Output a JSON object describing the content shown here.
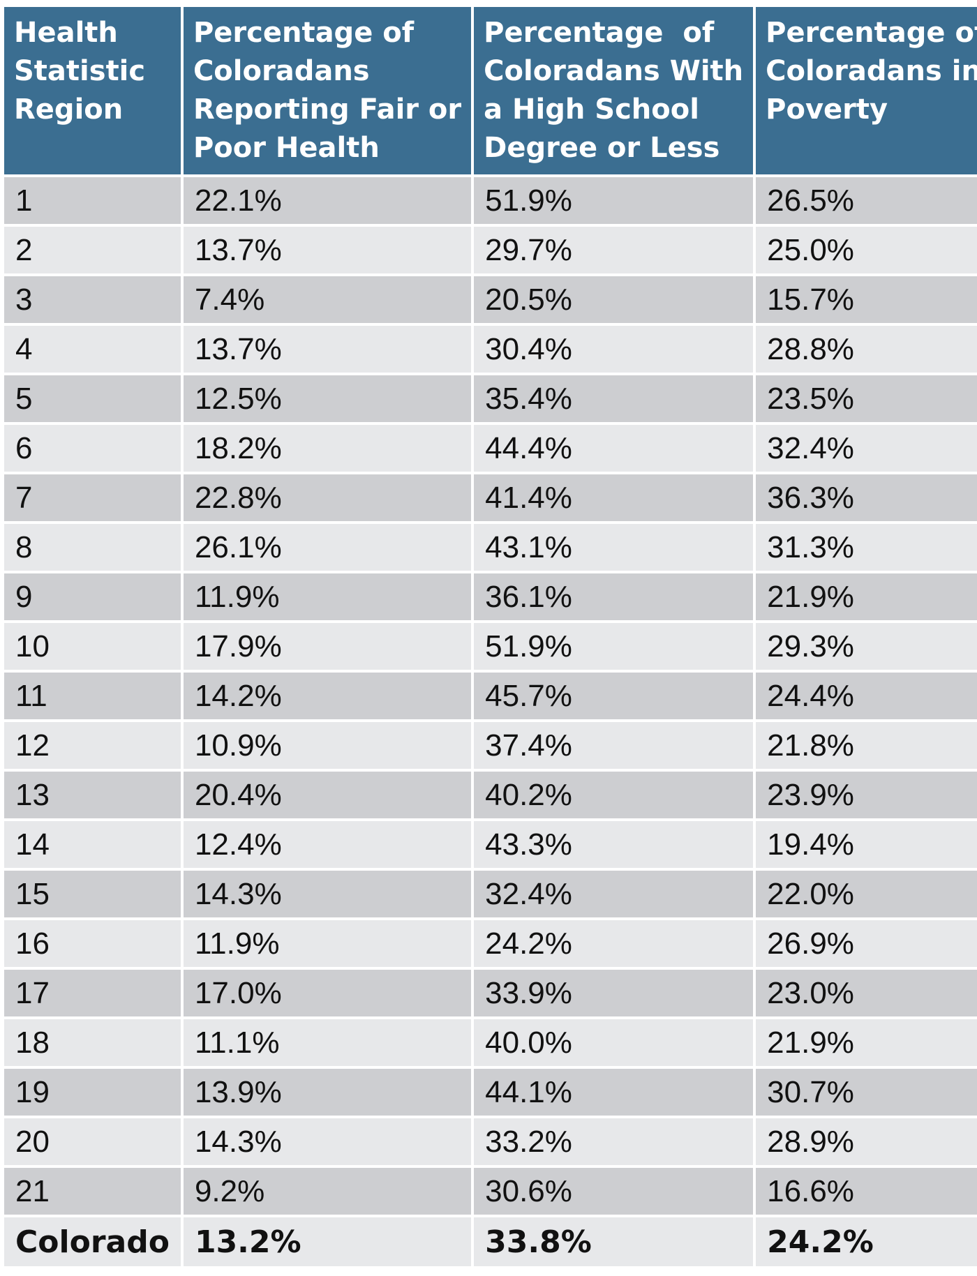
{
  "table": {
    "headers": [
      "Health Statistic Region",
      "Percentage of Coloradans Reporting Fair or Poor Health",
      "Percentage  of Coloradans With a High School Degree or Less",
      "Percentage of Coloradans in Poverty"
    ],
    "header_lines": [
      [
        "Health",
        "Statistic",
        "Region"
      ],
      [
        "Percentage of",
        "Coloradans",
        "Reporting Fair or",
        "Poor Health"
      ],
      [
        "Percentage  of",
        "Coloradans With",
        "a High School",
        "Degree or Less"
      ],
      [
        "Percentage of",
        "Coloradans in",
        "Poverty"
      ]
    ],
    "rows": [
      [
        "1",
        "22.1%",
        "51.9%",
        "26.5%"
      ],
      [
        "2",
        "13.7%",
        "29.7%",
        "25.0%"
      ],
      [
        "3",
        "7.4%",
        "20.5%",
        "15.7%"
      ],
      [
        "4",
        "13.7%",
        "30.4%",
        "28.8%"
      ],
      [
        "5",
        "12.5%",
        "35.4%",
        "23.5%"
      ],
      [
        "6",
        "18.2%",
        "44.4%",
        "32.4%"
      ],
      [
        "7",
        "22.8%",
        "41.4%",
        "36.3%"
      ],
      [
        "8",
        "26.1%",
        "43.1%",
        "31.3%"
      ],
      [
        "9",
        "11.9%",
        "36.1%",
        "21.9%"
      ],
      [
        "10",
        "17.9%",
        "51.9%",
        "29.3%"
      ],
      [
        "11",
        "14.2%",
        "45.7%",
        "24.4%"
      ],
      [
        "12",
        "10.9%",
        "37.4%",
        "21.8%"
      ],
      [
        "13",
        "20.4%",
        "40.2%",
        "23.9%"
      ],
      [
        "14",
        "12.4%",
        "43.3%",
        "19.4%"
      ],
      [
        "15",
        "14.3%",
        "32.4%",
        "22.0%"
      ],
      [
        "16",
        "11.9%",
        "24.2%",
        "26.9%"
      ],
      [
        "17",
        "17.0%",
        "33.9%",
        "23.0%"
      ],
      [
        "18",
        "11.1%",
        "40.0%",
        "21.9%"
      ],
      [
        "19",
        "13.9%",
        "44.1%",
        "30.7%"
      ],
      [
        "20",
        "14.3%",
        "33.2%",
        "28.9%"
      ],
      [
        "21",
        "9.2%",
        "30.6%",
        "16.6%"
      ]
    ],
    "total": [
      "Colorado",
      "13.2%",
      "33.8%",
      "24.2%"
    ]
  },
  "colors": {
    "header_bg": "#3b6e91",
    "header_text": "#ffffff",
    "row_dark": "#cdced1",
    "row_light": "#e7e8ea"
  }
}
